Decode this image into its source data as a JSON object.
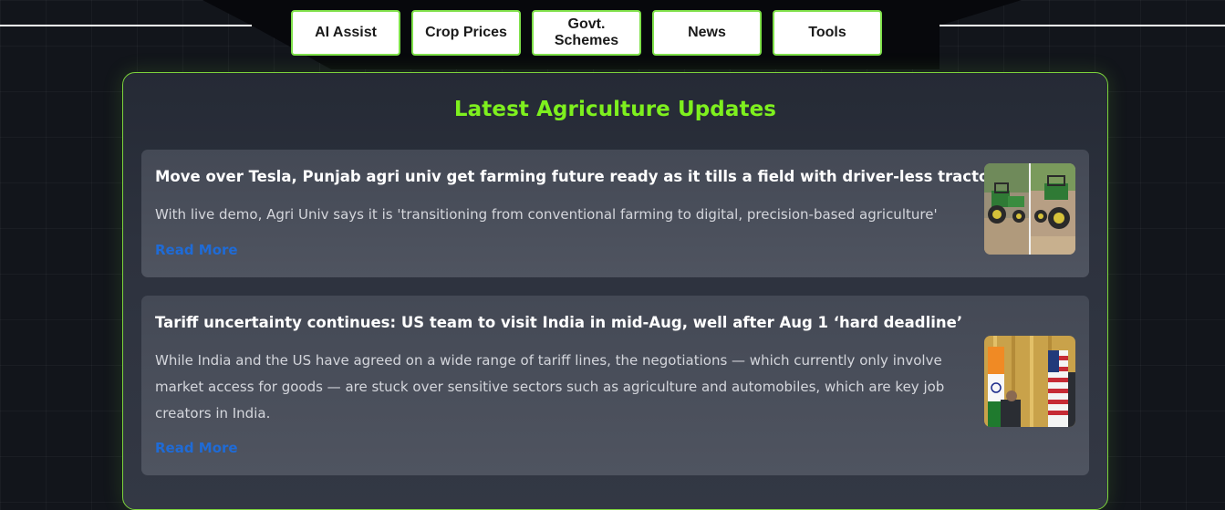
{
  "nav": {
    "items": [
      {
        "label": "AI Assist"
      },
      {
        "label": "Crop Prices"
      },
      {
        "label": "Govt. Schemes"
      },
      {
        "label": "News"
      },
      {
        "label": "Tools"
      }
    ]
  },
  "updates": {
    "title": "Latest Agriculture Updates",
    "articles": [
      {
        "title": "Move over Tesla, Punjab agri univ get farming future ready as it tills a field with driver-less tractor",
        "description": "With live demo, Agri Univ says it is 'transitioning from conventional farming to digital, precision-based agriculture'",
        "link_label": "Read More",
        "image_icon": "tractor-photo"
      },
      {
        "title": "Tariff uncertainty continues: US team to visit India in mid-Aug, well after Aug 1 ‘hard deadline’",
        "description": "While India and the US have agreed on a wide range of tariff lines, the negotiations — which currently only involve market access for goods — are stuck over sensitive sectors such as agriculture and automobiles, which are key job creators in India.",
        "link_label": "Read More",
        "image_icon": "flags-photo"
      }
    ]
  },
  "colors": {
    "accent": "#7ef01e",
    "panel_border": "#7cd33b",
    "link": "#1f6bd6",
    "background": "#12151b"
  }
}
